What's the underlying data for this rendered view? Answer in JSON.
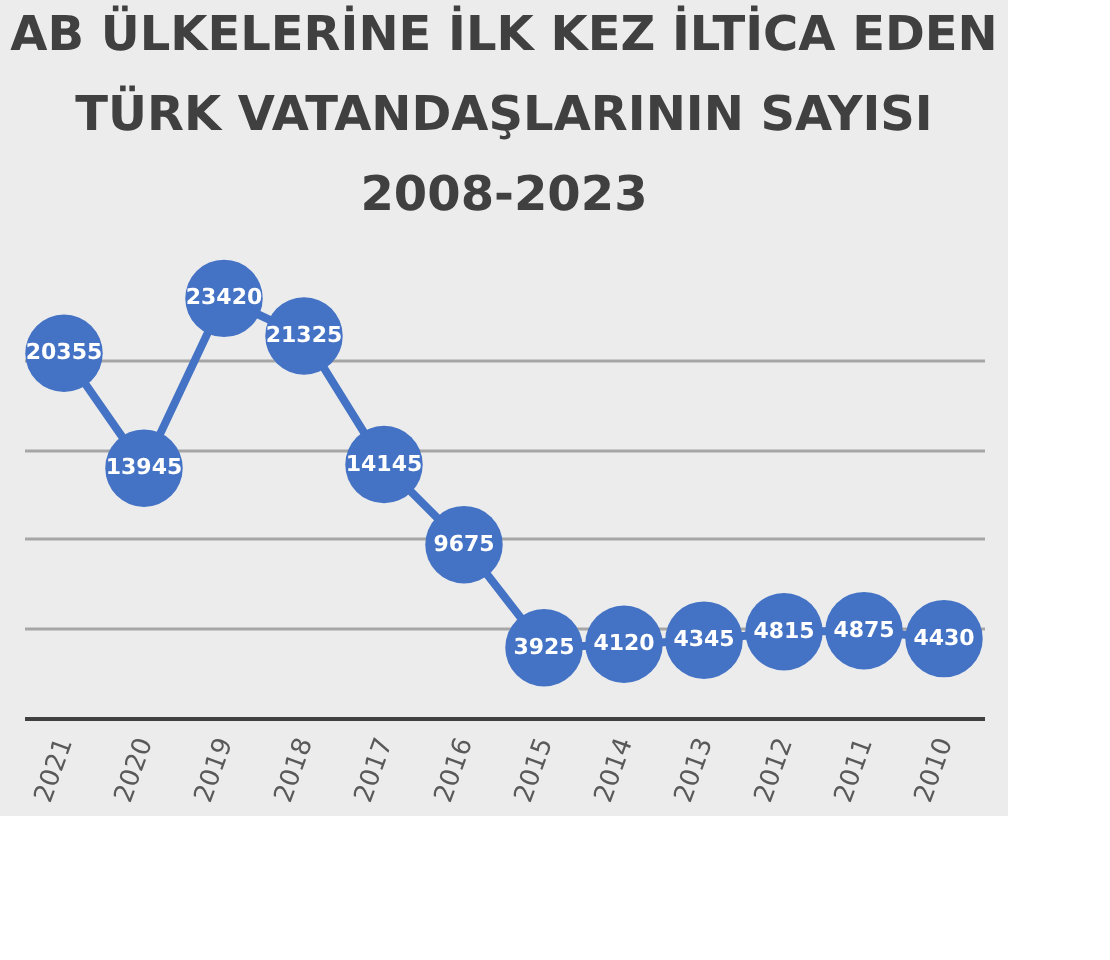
{
  "chart_data": {
    "type": "line",
    "title": [
      "AB ÜLKELERİNE İLK KEZ İLTİCA EDEN",
      "TÜRK VATANDAŞLARININ SAYISI",
      "2008-2023"
    ],
    "categories": [
      "2021",
      "2020",
      "2019",
      "2018",
      "2017",
      "2016",
      "2015",
      "2014",
      "2013",
      "2012",
      "2011",
      "2010"
    ],
    "series": [
      {
        "color": "#4472c4",
        "values": [
          20355,
          13945,
          23420,
          21325,
          14145,
          9675,
          3925,
          4120,
          4345,
          4815,
          4875,
          4430
        ]
      }
    ],
    "data_labels": true,
    "grid": "y",
    "tick_labels": "x",
    "marker": "circle",
    "line_style": "solid"
  }
}
